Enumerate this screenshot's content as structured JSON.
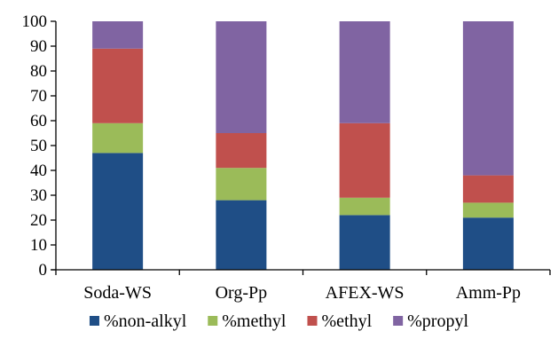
{
  "chart_data": {
    "type": "bar",
    "stacked": true,
    "percent_stacked": true,
    "categories": [
      "Soda-WS",
      "Org-Pp",
      "AFEX-WS",
      "Amm-Pp"
    ],
    "series": [
      {
        "name": "%non-alkyl",
        "color": "#1F4E86",
        "values": [
          47,
          28,
          22,
          21
        ]
      },
      {
        "name": "%methyl",
        "color": "#9BBB59",
        "values": [
          12,
          13,
          7,
          6
        ]
      },
      {
        "name": "%ethyl",
        "color": "#C0504D",
        "values": [
          30,
          14,
          30,
          11
        ]
      },
      {
        "name": "%propyl",
        "color": "#8064A2",
        "values": [
          11,
          45,
          41,
          62
        ]
      }
    ],
    "title": "",
    "xlabel": "",
    "ylabel": "",
    "ylim": [
      0,
      100
    ],
    "yticks": [
      0,
      10,
      20,
      30,
      40,
      50,
      60,
      70,
      80,
      90,
      100
    ],
    "grid": false,
    "legend_position": "bottom"
  }
}
